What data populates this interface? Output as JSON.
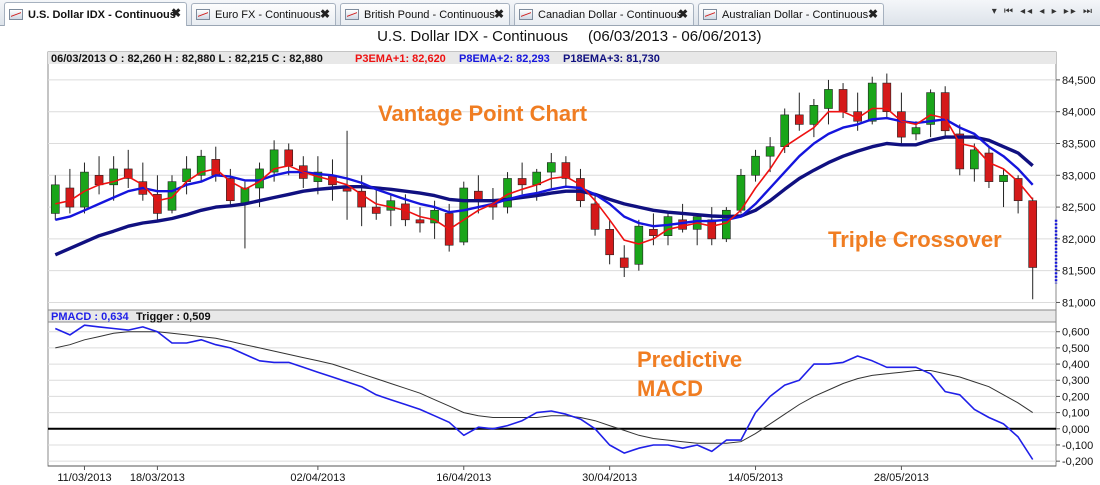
{
  "tabs": [
    {
      "label": "U.S. Dollar IDX -  Continuous",
      "active": true
    },
    {
      "label": "Euro FX -  Continuous",
      "active": false
    },
    {
      "label": "British Pound -  Continuous",
      "active": false
    },
    {
      "label": "Canadian Dollar -  Continuous",
      "active": false
    },
    {
      "label": "Australian Dollar -  Continuous",
      "active": false
    }
  ],
  "tab_close_glyph": "✖",
  "nav_controls": "▾ ⏮ ◂◂ ◂ ▸ ▸▸ ⏭",
  "colors": {
    "candle_up": "#1aa51a",
    "candle_down": "#d41a1a",
    "ema3": "#ee1111",
    "ema8": "#1515dd",
    "ema18": "#101080",
    "pmacd": "#1f1fe8",
    "trigger": "#333333",
    "annotation": "#f07d22"
  },
  "chart_data": {
    "type": "candlestick",
    "title": "U.S. Dollar IDX -  Continuous",
    "date_range": "(06/03/2013 - 06/06/2013)",
    "info_bar": {
      "ohlc": "06/03/2013 O : 82,260  H : 82,880  L : 82,215  C : 82,880",
      "ema3": "P3EMA+1: 82,620",
      "ema8": "P8EMA+2: 82,293",
      "ema18": "P18EMA+3: 81,730"
    },
    "annotations": [
      "Vantage Point Chart",
      "Triple Crossover",
      "Predictive",
      "MACD"
    ],
    "price_axis": {
      "ylim": [
        80.85,
        84.75
      ],
      "ticks": [
        "84,500",
        "84,000",
        "83,500",
        "83,000",
        "82,500",
        "82,000",
        "81,500",
        "81,000"
      ],
      "tick_values": [
        84.5,
        84.0,
        83.5,
        83.0,
        82.5,
        82.0,
        81.5,
        81.0
      ]
    },
    "x_labels": [
      "11/03/2013",
      "18/03/2013",
      "02/04/2013",
      "16/04/2013",
      "30/04/2013",
      "14/05/2013",
      "28/05/2013"
    ],
    "x_label_bar_index": [
      2,
      7,
      18,
      28,
      38,
      48,
      58
    ],
    "candles": [
      {
        "o": 82.4,
        "h": 83.0,
        "l": 82.3,
        "c": 82.85
      },
      {
        "o": 82.8,
        "h": 83.1,
        "l": 82.4,
        "c": 82.5
      },
      {
        "o": 82.5,
        "h": 83.2,
        "l": 82.4,
        "c": 83.05
      },
      {
        "o": 83.0,
        "h": 83.3,
        "l": 82.7,
        "c": 82.85
      },
      {
        "o": 82.85,
        "h": 83.3,
        "l": 82.6,
        "c": 83.1
      },
      {
        "o": 83.1,
        "h": 83.4,
        "l": 82.8,
        "c": 82.95
      },
      {
        "o": 82.9,
        "h": 83.2,
        "l": 82.6,
        "c": 82.7
      },
      {
        "o": 82.7,
        "h": 83.0,
        "l": 82.3,
        "c": 82.4
      },
      {
        "o": 82.45,
        "h": 83.0,
        "l": 82.4,
        "c": 82.9
      },
      {
        "o": 82.9,
        "h": 83.3,
        "l": 82.7,
        "c": 83.1
      },
      {
        "o": 83.0,
        "h": 83.4,
        "l": 82.9,
        "c": 83.3
      },
      {
        "o": 83.25,
        "h": 83.45,
        "l": 82.9,
        "c": 83.0
      },
      {
        "o": 82.95,
        "h": 83.1,
        "l": 82.5,
        "c": 82.6
      },
      {
        "o": 82.55,
        "h": 82.9,
        "l": 81.85,
        "c": 82.8
      },
      {
        "o": 82.8,
        "h": 83.2,
        "l": 82.5,
        "c": 83.1
      },
      {
        "o": 83.05,
        "h": 83.55,
        "l": 82.9,
        "c": 83.4
      },
      {
        "o": 83.4,
        "h": 83.5,
        "l": 83.0,
        "c": 83.15
      },
      {
        "o": 83.15,
        "h": 83.3,
        "l": 82.8,
        "c": 82.95
      },
      {
        "o": 82.9,
        "h": 83.3,
        "l": 82.7,
        "c": 83.05
      },
      {
        "o": 83.0,
        "h": 83.25,
        "l": 82.6,
        "c": 82.85
      },
      {
        "o": 82.8,
        "h": 83.7,
        "l": 82.3,
        "c": 82.75
      },
      {
        "o": 82.75,
        "h": 83.0,
        "l": 82.2,
        "c": 82.5
      },
      {
        "o": 82.5,
        "h": 82.8,
        "l": 82.3,
        "c": 82.4
      },
      {
        "o": 82.45,
        "h": 82.7,
        "l": 82.2,
        "c": 82.6
      },
      {
        "o": 82.55,
        "h": 82.7,
        "l": 82.2,
        "c": 82.3
      },
      {
        "o": 82.3,
        "h": 82.5,
        "l": 82.1,
        "c": 82.25
      },
      {
        "o": 82.25,
        "h": 82.6,
        "l": 82.0,
        "c": 82.45
      },
      {
        "o": 82.4,
        "h": 82.55,
        "l": 81.8,
        "c": 81.9
      },
      {
        "o": 81.95,
        "h": 82.9,
        "l": 81.9,
        "c": 82.8
      },
      {
        "o": 82.75,
        "h": 83.0,
        "l": 82.4,
        "c": 82.6
      },
      {
        "o": 82.55,
        "h": 82.8,
        "l": 82.3,
        "c": 82.5
      },
      {
        "o": 82.5,
        "h": 83.05,
        "l": 82.4,
        "c": 82.95
      },
      {
        "o": 82.95,
        "h": 83.2,
        "l": 82.7,
        "c": 82.85
      },
      {
        "o": 82.85,
        "h": 83.1,
        "l": 82.6,
        "c": 83.05
      },
      {
        "o": 83.05,
        "h": 83.35,
        "l": 82.8,
        "c": 83.2
      },
      {
        "o": 83.2,
        "h": 83.3,
        "l": 82.8,
        "c": 82.95
      },
      {
        "o": 82.95,
        "h": 83.1,
        "l": 82.5,
        "c": 82.6
      },
      {
        "o": 82.55,
        "h": 82.7,
        "l": 82.05,
        "c": 82.15
      },
      {
        "o": 82.15,
        "h": 82.3,
        "l": 81.6,
        "c": 81.75
      },
      {
        "o": 81.7,
        "h": 81.9,
        "l": 81.4,
        "c": 81.55
      },
      {
        "o": 81.6,
        "h": 82.3,
        "l": 81.5,
        "c": 82.2
      },
      {
        "o": 82.15,
        "h": 82.4,
        "l": 81.9,
        "c": 82.05
      },
      {
        "o": 82.05,
        "h": 82.4,
        "l": 81.9,
        "c": 82.35
      },
      {
        "o": 82.3,
        "h": 82.55,
        "l": 82.1,
        "c": 82.15
      },
      {
        "o": 82.15,
        "h": 82.4,
        "l": 81.9,
        "c": 82.35
      },
      {
        "o": 82.3,
        "h": 82.5,
        "l": 81.9,
        "c": 82.0
      },
      {
        "o": 82.0,
        "h": 82.5,
        "l": 81.95,
        "c": 82.45
      },
      {
        "o": 82.45,
        "h": 83.1,
        "l": 82.4,
        "c": 83.0
      },
      {
        "o": 83.0,
        "h": 83.4,
        "l": 82.9,
        "c": 83.3
      },
      {
        "o": 83.3,
        "h": 83.6,
        "l": 83.05,
        "c": 83.45
      },
      {
        "o": 83.45,
        "h": 84.05,
        "l": 83.35,
        "c": 83.95
      },
      {
        "o": 83.95,
        "h": 84.3,
        "l": 83.7,
        "c": 83.8
      },
      {
        "o": 83.8,
        "h": 84.2,
        "l": 83.6,
        "c": 84.1
      },
      {
        "o": 84.05,
        "h": 84.5,
        "l": 83.8,
        "c": 84.35
      },
      {
        "o": 84.35,
        "h": 84.45,
        "l": 83.9,
        "c": 84.0
      },
      {
        "o": 84.0,
        "h": 84.3,
        "l": 83.7,
        "c": 83.85
      },
      {
        "o": 83.85,
        "h": 84.55,
        "l": 83.8,
        "c": 84.45
      },
      {
        "o": 84.45,
        "h": 84.6,
        "l": 83.9,
        "c": 84.0
      },
      {
        "o": 84.0,
        "h": 84.3,
        "l": 83.5,
        "c": 83.6
      },
      {
        "o": 83.65,
        "h": 83.85,
        "l": 83.55,
        "c": 83.75
      },
      {
        "o": 83.8,
        "h": 84.35,
        "l": 83.6,
        "c": 84.3
      },
      {
        "o": 84.3,
        "h": 84.4,
        "l": 83.6,
        "c": 83.7
      },
      {
        "o": 83.65,
        "h": 83.8,
        "l": 83.0,
        "c": 83.1
      },
      {
        "o": 83.1,
        "h": 83.5,
        "l": 82.9,
        "c": 83.4
      },
      {
        "o": 83.35,
        "h": 83.45,
        "l": 82.8,
        "c": 82.9
      },
      {
        "o": 82.9,
        "h": 83.1,
        "l": 82.5,
        "c": 83.0
      },
      {
        "o": 82.95,
        "h": 83.0,
        "l": 82.4,
        "c": 82.6
      },
      {
        "o": 82.6,
        "h": 82.65,
        "l": 81.05,
        "c": 81.55
      }
    ],
    "projection_bar": {
      "low": 81.3,
      "high": 82.3
    },
    "series": [
      {
        "name": "P3EMA+1",
        "values": [
          82.55,
          82.6,
          82.75,
          82.85,
          82.9,
          82.98,
          82.85,
          82.6,
          82.65,
          82.9,
          83.05,
          83.1,
          82.9,
          82.78,
          82.9,
          83.1,
          83.15,
          83.05,
          82.98,
          82.92,
          82.85,
          82.7,
          82.55,
          82.5,
          82.45,
          82.35,
          82.3,
          82.15,
          82.3,
          82.45,
          82.55,
          82.7,
          82.78,
          82.85,
          82.95,
          82.98,
          82.85,
          82.6,
          82.3,
          81.98,
          81.92,
          82.0,
          82.15,
          82.2,
          82.25,
          82.2,
          82.25,
          82.45,
          82.8,
          83.1,
          83.45,
          83.6,
          83.75,
          84.0,
          84.0,
          83.9,
          84.05,
          84.05,
          83.85,
          83.8,
          83.95,
          83.9,
          83.5,
          83.45,
          83.2,
          83.1,
          82.9,
          82.62
        ]
      },
      {
        "name": "P8EMA+2",
        "values": [
          82.3,
          82.35,
          82.45,
          82.55,
          82.65,
          82.75,
          82.8,
          82.75,
          82.75,
          82.85,
          82.9,
          83.0,
          82.98,
          82.92,
          82.92,
          83.0,
          83.05,
          83.05,
          83.02,
          83.0,
          82.95,
          82.88,
          82.78,
          82.7,
          82.62,
          82.55,
          82.5,
          82.42,
          82.45,
          82.5,
          82.55,
          82.62,
          82.68,
          82.72,
          82.78,
          82.82,
          82.8,
          82.7,
          82.55,
          82.35,
          82.25,
          82.2,
          82.22,
          82.25,
          82.28,
          82.28,
          82.3,
          82.35,
          82.55,
          82.8,
          83.05,
          83.3,
          83.5,
          83.65,
          83.75,
          83.8,
          83.88,
          83.9,
          83.85,
          83.82,
          83.85,
          83.88,
          83.75,
          83.65,
          83.45,
          83.3,
          83.1,
          82.85
        ]
      },
      {
        "name": "P18EMA+3",
        "values": [
          81.75,
          81.85,
          81.95,
          82.05,
          82.12,
          82.2,
          82.25,
          82.28,
          82.32,
          82.38,
          82.45,
          82.5,
          82.52,
          82.55,
          82.6,
          82.65,
          82.7,
          82.75,
          82.78,
          82.8,
          82.82,
          82.82,
          82.8,
          82.78,
          82.75,
          82.72,
          82.68,
          82.62,
          82.6,
          82.6,
          82.6,
          82.62,
          82.65,
          82.68,
          82.72,
          82.75,
          82.75,
          82.7,
          82.62,
          82.55,
          82.5,
          82.45,
          82.42,
          82.4,
          82.38,
          82.36,
          82.35,
          82.36,
          82.45,
          82.6,
          82.78,
          82.95,
          83.08,
          83.2,
          83.3,
          83.38,
          83.45,
          83.5,
          83.48,
          83.48,
          83.55,
          83.6,
          83.6,
          83.6,
          83.55,
          83.45,
          83.35,
          83.15
        ]
      }
    ],
    "macd": {
      "label": "PMACD : 0,634",
      "trigger_label": "Trigger : 0,509",
      "ylim": [
        -0.23,
        0.66
      ],
      "ticks": [
        "0,600",
        "0,500",
        "0,400",
        "0,300",
        "0,200",
        "0,100",
        "0,000",
        "-0,100",
        "-0,200"
      ],
      "tick_values": [
        0.6,
        0.5,
        0.4,
        0.3,
        0.2,
        0.1,
        0.0,
        -0.1,
        -0.2
      ],
      "pmacd": [
        0.62,
        0.58,
        0.64,
        0.63,
        0.62,
        0.61,
        0.63,
        0.6,
        0.53,
        0.53,
        0.55,
        0.52,
        0.5,
        0.46,
        0.42,
        0.41,
        0.41,
        0.38,
        0.35,
        0.32,
        0.29,
        0.26,
        0.21,
        0.18,
        0.15,
        0.12,
        0.08,
        0.04,
        -0.04,
        0.01,
        0.0,
        0.02,
        0.05,
        0.1,
        0.11,
        0.09,
        0.06,
        0.0,
        -0.1,
        -0.15,
        -0.12,
        -0.1,
        -0.1,
        -0.12,
        -0.1,
        -0.14,
        -0.07,
        -0.07,
        0.1,
        0.2,
        0.27,
        0.3,
        0.4,
        0.4,
        0.41,
        0.45,
        0.42,
        0.38,
        0.38,
        0.38,
        0.34,
        0.23,
        0.21,
        0.12,
        0.07,
        0.03,
        -0.05,
        -0.19
      ],
      "trigger": [
        0.5,
        0.52,
        0.55,
        0.57,
        0.59,
        0.6,
        0.6,
        0.6,
        0.59,
        0.58,
        0.57,
        0.56,
        0.54,
        0.52,
        0.5,
        0.48,
        0.46,
        0.44,
        0.42,
        0.4,
        0.37,
        0.34,
        0.31,
        0.28,
        0.25,
        0.22,
        0.18,
        0.14,
        0.1,
        0.08,
        0.07,
        0.07,
        0.07,
        0.07,
        0.08,
        0.08,
        0.07,
        0.05,
        0.02,
        -0.01,
        -0.04,
        -0.06,
        -0.07,
        -0.08,
        -0.09,
        -0.09,
        -0.09,
        -0.08,
        -0.03,
        0.03,
        0.09,
        0.15,
        0.2,
        0.24,
        0.28,
        0.31,
        0.33,
        0.34,
        0.35,
        0.36,
        0.36,
        0.34,
        0.32,
        0.29,
        0.26,
        0.21,
        0.16,
        0.1
      ]
    }
  }
}
